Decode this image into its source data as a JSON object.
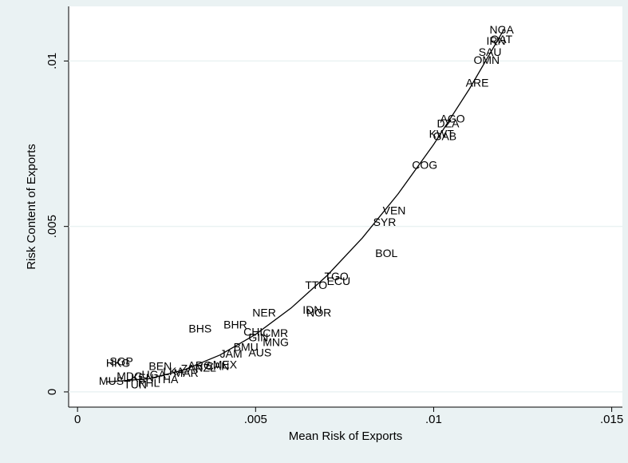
{
  "chart_data": {
    "type": "scatter",
    "x_label": "Mean Risk of Exports",
    "y_label": "Risk Content of Exports",
    "xlim": [
      -0.00025,
      0.0153
    ],
    "ylim": [
      -0.00046,
      0.01165
    ],
    "xticks": [
      0,
      {
        "value": 0.005,
        "label": ".005"
      },
      {
        "value": 0.01,
        "label": ".01"
      },
      {
        "value": 0.015,
        "label": ".015"
      }
    ],
    "yticks": [
      0,
      {
        "value": 0.005,
        "label": ".005"
      },
      {
        "value": 0.01,
        "label": ".01"
      }
    ],
    "grid": true,
    "label_color": "#2b2b2b",
    "fit_color": "#000000",
    "points": {
      "labels": [
        "NGA",
        "QAT",
        "IRN",
        "SAU",
        "OMN",
        "ARE",
        "AGO",
        "DZA",
        "KWT",
        "GAB",
        "COG",
        "VEN",
        "SYR",
        "BOL",
        "TGO",
        "ECU",
        "TTO",
        "IDN",
        "NOR",
        "NER",
        "BHS",
        "BHR",
        "CHL",
        "CMR",
        "GIN",
        "MNG",
        "BMU",
        "AUS",
        "JAM",
        "ARG",
        "CAN",
        "ZAF",
        "NZL",
        "SGP",
        "HKG",
        "BEN",
        "MUS",
        "MDG",
        "KEN",
        "UGA",
        "LKA",
        "MAR",
        "TUN",
        "PHL",
        "THA",
        "MEX"
      ],
      "x": [
        0.01157,
        0.01159,
        0.01148,
        0.01126,
        0.01112,
        0.0109,
        0.01018,
        0.01009,
        0.00987,
        0.00998,
        0.00939,
        0.00857,
        0.0083,
        0.00836,
        0.00693,
        0.007,
        0.00639,
        0.00632,
        0.00643,
        0.00491,
        0.00312,
        0.0041,
        0.00466,
        0.0052,
        0.0048,
        0.0052,
        0.00438,
        0.0048,
        0.004,
        0.0031,
        0.0036,
        0.0029,
        0.0033,
        0.0009,
        0.0008,
        0.002,
        0.0006,
        0.0011,
        0.0015,
        0.0018,
        0.0024,
        0.0027,
        0.0013,
        0.0017,
        0.0022,
        0.0038
      ],
      "y": [
        0.01092,
        0.01063,
        0.01058,
        0.01024,
        0.01,
        0.00932,
        0.00823,
        0.00809,
        0.00777,
        0.0077,
        0.00683,
        0.00545,
        0.00511,
        0.00416,
        0.00346,
        0.00332,
        0.0032,
        0.00245,
        0.00237,
        0.00237,
        0.00189,
        0.00201,
        0.00179,
        0.00175,
        0.00162,
        0.00148,
        0.00133,
        0.00116,
        0.00113,
        0.00078,
        0.00075,
        0.00068,
        0.0007,
        0.0009,
        0.00085,
        0.00075,
        0.0003,
        0.00045,
        0.0004,
        0.0005,
        0.0006,
        0.00055,
        0.0002,
        0.00025,
        0.00035,
        0.0008
      ]
    },
    "fit": {
      "x": [
        0.0008,
        0.002,
        0.003,
        0.004,
        0.005,
        0.006,
        0.007,
        0.008,
        0.009,
        0.01,
        0.011,
        0.012
      ],
      "y": [
        0.000301,
        0.000396,
        0.000668,
        0.001116,
        0.001738,
        0.002536,
        0.003508,
        0.004656,
        0.00598,
        0.007478,
        0.009152,
        0.011
      ]
    }
  }
}
